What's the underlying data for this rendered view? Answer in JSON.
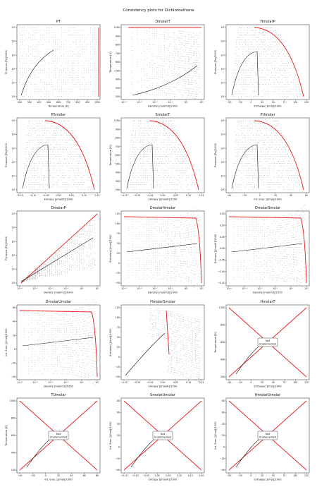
{
  "title": "Consistency plots for Dichloroethane",
  "not_implemented_text": [
    "Not",
    "Implemented"
  ],
  "colors": {
    "points": "#333333",
    "boundary": "#e41a1c",
    "frame": "#222222"
  },
  "chart_data": [
    {
      "id": "PT",
      "type": "scatter",
      "title": "PT",
      "xlabel": "Temperature [K]",
      "ylabel": "Pressure [Pa]/1000",
      "xticks": [
        "200",
        "300",
        "400",
        "500",
        "600",
        "700",
        "800",
        "900",
        "1000"
      ],
      "yticks": [
        "10⁰",
        "10¹",
        "10²",
        "10³",
        "10⁴",
        "10⁵"
      ]
    },
    {
      "id": "DmolarT",
      "type": "scatter",
      "title": "DmolarT",
      "xlabel": "Density [mol/m3]/1000",
      "ylabel": "Temperature [K]",
      "xticks": [
        "10⁻⁴",
        "10⁻³",
        "10⁻²",
        "10⁻¹",
        "10⁰",
        "10¹"
      ],
      "yticks": [
        "200",
        "300",
        "400",
        "500",
        "600",
        "700",
        "800",
        "900",
        "1000"
      ]
    },
    {
      "id": "HmolarP",
      "type": "scatter",
      "title": "HmolarP",
      "xlabel": "Enthalpy [J/mol]/1000",
      "ylabel": "Pressure [Pa]/1000",
      "xticks": [
        "−50",
        "−25",
        "0",
        "25",
        "50",
        "75",
        "100",
        "125"
      ],
      "yticks": [
        "10⁰",
        "10¹",
        "10²",
        "10³",
        "10⁴",
        "10⁵"
      ]
    },
    {
      "id": "PSmolar",
      "type": "scatter",
      "title": "PSmolar",
      "xlabel": "Entropy [J/mol/K]/1000",
      "ylabel": "Pressure [Pa]/1000",
      "xticks": [
        "−0.15",
        "−0.10",
        "−0.05",
        "0.00",
        "0.05",
        "0.10",
        "0.15"
      ],
      "yticks": [
        "10⁰",
        "10¹",
        "10²",
        "10³",
        "10⁴",
        "10⁵"
      ]
    },
    {
      "id": "SmolarT",
      "type": "scatter",
      "title": "SmolarT",
      "xlabel": "Entropy [J/mol/K]/1000",
      "ylabel": "Temperature [K]",
      "xticks": [
        "−0.15",
        "−0.10",
        "−0.05",
        "0.00",
        "0.05",
        "0.10",
        "0.15"
      ],
      "yticks": [
        "200",
        "300",
        "400",
        "500",
        "600",
        "700",
        "800",
        "900",
        "1000"
      ]
    },
    {
      "id": "PUmolar",
      "type": "scatter",
      "title": "PUmolar",
      "xlabel": "Int. Ener. [J/mol]/1000",
      "ylabel": "Pressure [Pa]/1000",
      "xticks": [
        "−40",
        "−20",
        "0",
        "20",
        "40",
        "60"
      ],
      "yticks": [
        "10⁰",
        "10¹",
        "10²",
        "10³",
        "10⁴",
        "10⁵"
      ]
    },
    {
      "id": "DmolarP",
      "type": "scatter",
      "title": "DmolarP",
      "xlabel": "Density [mol/m3]/1000",
      "ylabel": "Pressure [Pa]/1000",
      "xticks": [
        "10⁻⁴",
        "10⁻³",
        "10⁻²",
        "10⁻¹",
        "10⁰",
        "10¹"
      ],
      "yticks": [
        "10⁰",
        "10¹",
        "10²",
        "10³",
        "10⁴",
        "10⁵"
      ]
    },
    {
      "id": "DmolarHmolar",
      "type": "scatter",
      "title": "DmolarHmolar",
      "xlabel": "Density [mol/m3]/1000",
      "ylabel": "Enthalpy [J/mol]/1000",
      "xticks": [
        "10⁻⁴",
        "10⁻³",
        "10⁻²",
        "10⁻¹",
        "10⁰",
        "10¹"
      ],
      "yticks": [
        "−50",
        "−25",
        "0",
        "25",
        "50",
        "75",
        "100",
        "125"
      ]
    },
    {
      "id": "DmolarSmolar",
      "type": "scatter",
      "title": "DmolarSmolar",
      "xlabel": "Density [mol/m3]/1000",
      "ylabel": "Entropy [J/mol/K]/1000",
      "xticks": [
        "10⁻⁴",
        "10⁻³",
        "10⁻²",
        "10⁻¹",
        "10⁰",
        "10¹"
      ],
      "yticks": [
        "−0.15",
        "−0.10",
        "−0.05",
        "0.00",
        "0.05",
        "0.10",
        "0.15"
      ]
    },
    {
      "id": "DmolarUmolar",
      "type": "scatter",
      "title": "DmolarUmolar",
      "xlabel": "Density [mol/m3]/1000",
      "ylabel": "Int. Ener. [J/mol]/1000",
      "xticks": [
        "10⁻⁴",
        "10⁻³",
        "10⁻²",
        "10⁻¹",
        "10⁰",
        "10¹"
      ],
      "yticks": [
        "−40",
        "−20",
        "0",
        "20",
        "40",
        "60"
      ]
    },
    {
      "id": "HmolarSmolar",
      "type": "scatter",
      "title": "HmolarSmolar",
      "xlabel": "Entropy [J/mol/K]/1000",
      "ylabel": "Enthalpy [J/mol]/1000",
      "xticks": [
        "−0.15",
        "−0.10",
        "−0.05",
        "0.00",
        "0.05",
        "0.10",
        "0.15"
      ],
      "yticks": [
        "−50",
        "−25",
        "0",
        "25",
        "50",
        "75",
        "100",
        "125"
      ]
    },
    {
      "id": "HmolarT",
      "type": "scatter",
      "title": "HmolarT",
      "xlabel": "Enthalpy [J/mol]/1000",
      "ylabel": "Temperature [K]",
      "xticks": [
        "−50",
        "−25",
        "0",
        "25",
        "50",
        "75",
        "100",
        "125"
      ],
      "yticks": [
        "200",
        "400",
        "600",
        "800",
        "1000"
      ],
      "not_implemented": true
    },
    {
      "id": "TUmolar",
      "type": "scatter",
      "title": "TUmolar",
      "xlabel": "Int. Ener. [J/mol]/1000",
      "ylabel": "Temperature [K]",
      "xticks": [
        "−40",
        "−20",
        "0",
        "20",
        "40",
        "60",
        "80"
      ],
      "yticks": [
        "200",
        "400",
        "600",
        "800",
        "1000"
      ],
      "not_implemented": true
    },
    {
      "id": "SmolarUmolar",
      "type": "scatter",
      "title": "SmolarUmolar",
      "xlabel": "Entropy [J/mol/K]/1000",
      "ylabel": "Int. Ener. [J/mol]/1000",
      "xticks": [
        "−0.15",
        "−0.10",
        "−0.05",
        "0.00",
        "0.05",
        "0.10",
        "0.15",
        "0.20"
      ],
      "yticks": [
        "−40",
        "−20",
        "0",
        "20",
        "40",
        "60",
        "80"
      ],
      "not_implemented": true
    },
    {
      "id": "HmolarUmolar",
      "type": "scatter",
      "title": "HmolarUmolar",
      "xlabel": "Enthalpy [J/mol]/1000",
      "ylabel": "Int. Ener. [J/mol]/1000",
      "xticks": [
        "−50",
        "−25",
        "0",
        "25",
        "50",
        "75",
        "100",
        "125"
      ],
      "yticks": [
        "−40",
        "−20",
        "0",
        "20",
        "40",
        "60",
        "80"
      ],
      "not_implemented": true
    }
  ]
}
